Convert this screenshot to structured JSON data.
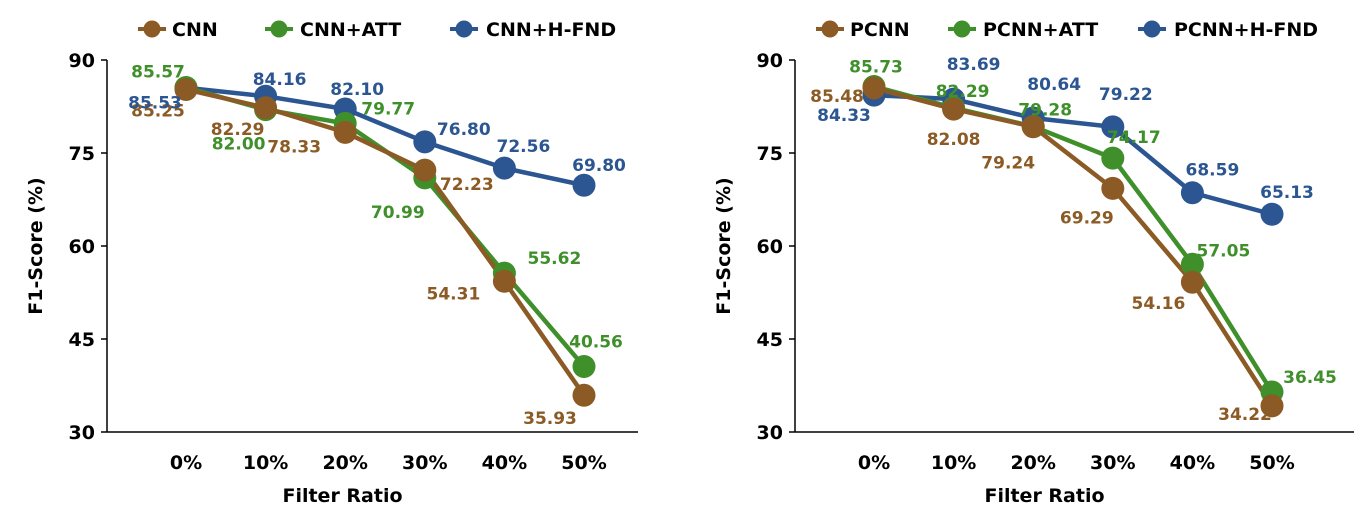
{
  "chart_data": [
    {
      "type": "line",
      "categories": [
        "0%",
        "10%",
        "20%",
        "30%",
        "40%",
        "50%"
      ],
      "xlabel": "Filter Ratio",
      "ylabel": "F1-Score (%)",
      "ylim": [
        30,
        90
      ],
      "yticks": [
        "30",
        "45",
        "60",
        "75",
        "90"
      ],
      "legend_position": "top",
      "grid": false,
      "series": [
        {
          "name": "CNN",
          "color": "#8c5a24",
          "values": [
            85.25,
            82.29,
            78.33,
            72.23,
            54.31,
            35.93
          ],
          "labels": [
            "85.25",
            "82.29",
            "78.33",
            "72.23",
            "54.31",
            "35.93"
          ]
        },
        {
          "name": "CNN+ATT",
          "color": "#3f8f2a",
          "values": [
            85.57,
            82.0,
            79.77,
            70.99,
            55.62,
            40.56
          ],
          "labels": [
            "85.57",
            "82.00",
            "79.77",
            "70.99",
            "55.62",
            "40.56"
          ]
        },
        {
          "name": "CNN+H-FND",
          "color": "#2b5691",
          "values": [
            85.53,
            84.16,
            82.1,
            76.8,
            72.56,
            69.8
          ],
          "labels": [
            "85.53",
            "84.16",
            "82.10",
            "76.80",
            "72.56",
            "69.80"
          ]
        }
      ]
    },
    {
      "type": "line",
      "categories": [
        "0%",
        "10%",
        "20%",
        "30%",
        "40%",
        "50%"
      ],
      "xlabel": "Filter Ratio",
      "ylabel": "F1-Score (%)",
      "ylim": [
        30,
        90
      ],
      "yticks": [
        "30",
        "45",
        "60",
        "75",
        "90"
      ],
      "legend_position": "top",
      "grid": false,
      "series": [
        {
          "name": "PCNN",
          "color": "#8c5a24",
          "values": [
            85.48,
            82.08,
            79.24,
            69.29,
            54.16,
            34.22
          ],
          "labels": [
            "85.48",
            "82.08",
            "79.24",
            "69.29",
            "54.16",
            "34.22"
          ]
        },
        {
          "name": "PCNN+ATT",
          "color": "#3f8f2a",
          "values": [
            85.73,
            82.29,
            79.28,
            74.17,
            57.05,
            36.45
          ],
          "labels": [
            "85.73",
            "82.29",
            "79.28",
            "74.17",
            "57.05",
            "36.45"
          ]
        },
        {
          "name": "PCNN+H-FND",
          "color": "#2b5691",
          "values": [
            84.33,
            83.69,
            80.64,
            79.22,
            68.59,
            65.13
          ],
          "labels": [
            "84.33",
            "83.69",
            "80.64",
            "79.22",
            "68.59",
            "65.13"
          ]
        }
      ]
    }
  ]
}
